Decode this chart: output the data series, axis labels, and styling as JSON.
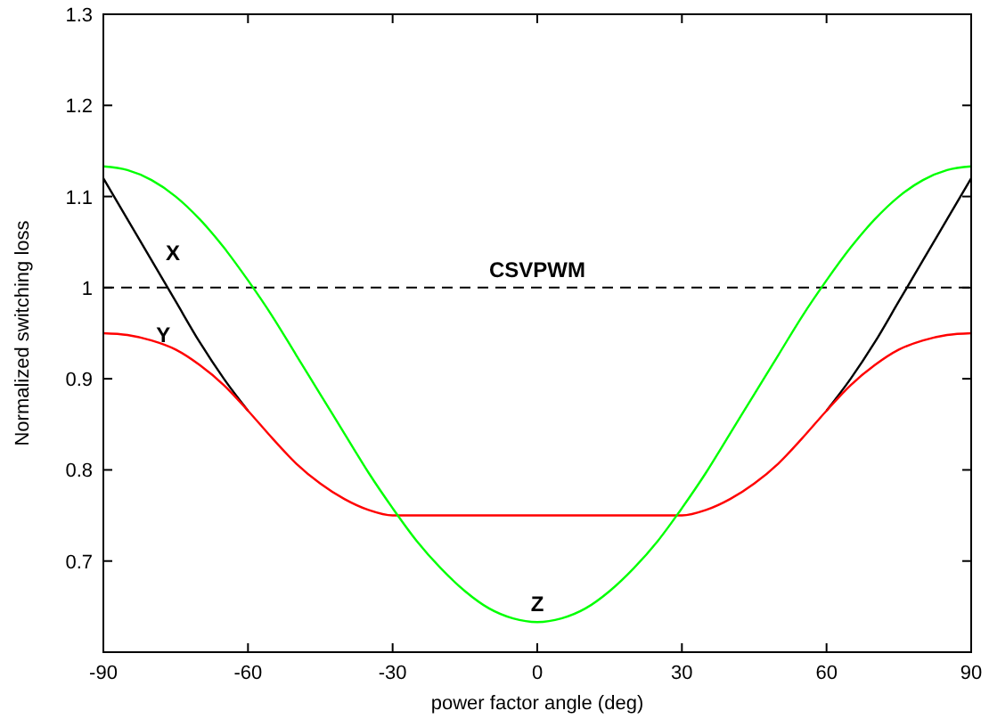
{
  "chart_data": {
    "type": "line",
    "xlabel": "power factor angle (deg)",
    "ylabel": "Normalized switching loss",
    "x": [
      -90,
      -85,
      -80,
      -75,
      -70,
      -65,
      -60,
      -55,
      -50,
      -45,
      -40,
      -35,
      -30,
      -25,
      -20,
      -15,
      -10,
      -5,
      0,
      5,
      10,
      15,
      20,
      25,
      30,
      35,
      40,
      45,
      50,
      55,
      60,
      65,
      70,
      75,
      80,
      85,
      90
    ],
    "series": [
      {
        "color": "#000000",
        "values": [
          1.12,
          1.075,
          1.03,
          0.985,
          0.94,
          0.9,
          0.865,
          null,
          null,
          null,
          null,
          null,
          null,
          null,
          null,
          null,
          null,
          null,
          null,
          null,
          null,
          null,
          null,
          null,
          null,
          null,
          null,
          null,
          null,
          null,
          0.865,
          0.9,
          0.94,
          0.985,
          1.03,
          1.075,
          1.12
        ]
      },
      {
        "color": "#ff0000",
        "values": [
          0.95,
          0.948,
          0.942,
          0.932,
          0.915,
          0.893,
          0.865,
          0.835,
          0.807,
          0.785,
          0.768,
          0.756,
          0.75,
          0.75,
          0.75,
          0.75,
          0.75,
          0.75,
          0.75,
          0.75,
          0.75,
          0.75,
          0.75,
          0.75,
          0.75,
          0.756,
          0.768,
          0.785,
          0.807,
          0.835,
          0.865,
          0.893,
          0.915,
          0.932,
          0.942,
          0.948,
          0.95
        ]
      },
      {
        "color": "#00ff00",
        "values": [
          1.133,
          1.129,
          1.118,
          1.1,
          1.075,
          1.044,
          1.008,
          0.969,
          0.926,
          0.883,
          0.84,
          0.797,
          0.758,
          0.722,
          0.692,
          0.667,
          0.648,
          0.637,
          0.633,
          0.637,
          0.648,
          0.667,
          0.692,
          0.722,
          0.758,
          0.797,
          0.84,
          0.883,
          0.926,
          0.969,
          1.008,
          1.044,
          1.075,
          1.1,
          1.118,
          1.129,
          1.133
        ]
      }
    ],
    "xlim": [
      -90,
      90
    ],
    "xticks": [
      -90,
      -60,
      -30,
      0,
      30,
      60,
      90
    ],
    "ylim": [
      0.6,
      1.3
    ],
    "yticks": [
      0.7,
      0.8,
      0.9,
      {
        "value": 1,
        "label": "1"
      },
      1.1,
      1.2,
      1.3
    ],
    "ref_lines": [
      {
        "axis": "y",
        "value": 1,
        "label": "CSVPWM",
        "color": "#000000",
        "line_style": "dashed"
      }
    ],
    "annotations": [
      {
        "text": "X",
        "x": -80,
        "y": 1.03
      },
      {
        "text": "Y",
        "x": -82,
        "y": 0.94
      },
      {
        "text": "Z",
        "x": 0,
        "y": 0.633
      }
    ],
    "grid": false
  }
}
